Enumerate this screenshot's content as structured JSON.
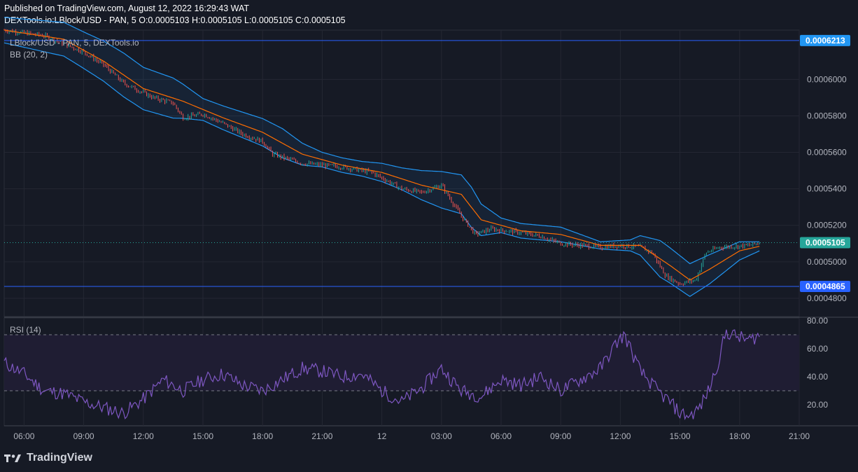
{
  "header": {
    "published": "Published on TradingView.com, August 12, 2022 16:29:43 WAT",
    "symbol": "DEXTools.io:LBlock/USD - PAN, 5",
    "ohlc": "O:0.0005103 H:0.0005105 L:0.0005105 C:0.0005105"
  },
  "legend": {
    "series": "LBlock/USD - PAN, 5, DEXTools.io",
    "indicator": "BB (20, 2)",
    "rsi": "RSI (14)"
  },
  "footer": {
    "brand": "TradingView",
    "logo_icon": "tradingview-logo-icon"
  },
  "colors": {
    "background": "#161a25",
    "grid": "#242733",
    "bb_band": "#2196f3",
    "bb_basis": "#ff6d00",
    "candle_up": "#26a69a",
    "candle_down": "#ef5350",
    "rsi_line": "#7e57c2",
    "rsi_band_fill": "#1f1d33",
    "hline": "#2962ff",
    "last_price": "#26a69a",
    "axis_text": "#b2b5be"
  },
  "chart_data": [
    {
      "type": "candlestick",
      "series_name": "LBlock/USD - PAN, 5, DEXTools.io",
      "ylim": [
        0.00047,
        0.000627
      ],
      "y_ticks": [
        "0.0004800",
        "0.0005000",
        "0.0005200",
        "0.0005400",
        "0.0005600",
        "0.0005800",
        "0.0006000"
      ],
      "x_ticks": [
        "06:00",
        "09:00",
        "12:00",
        "15:00",
        "18:00",
        "21:00",
        "12",
        "03:00",
        "06:00",
        "09:00",
        "12:00",
        "15:00",
        "18:00",
        "21:00"
      ],
      "xlim_hours": [
        5.0,
        45.0
      ],
      "horizontal_lines": [
        "0.0006213",
        "0.0004865"
      ],
      "last_price": "0.0005105",
      "close_path": [
        [
          5.0,
          0.000627
        ],
        [
          7.0,
          0.000624
        ],
        [
          9.0,
          0.000615
        ],
        [
          10.0,
          0.000608
        ],
        [
          11.0,
          0.000598
        ],
        [
          12.5,
          0.00059
        ],
        [
          13.5,
          0.000587
        ],
        [
          14.0,
          0.000579
        ],
        [
          15.0,
          0.000581
        ],
        [
          16.0,
          0.000576
        ],
        [
          17.0,
          0.00057
        ],
        [
          18.0,
          0.000566
        ],
        [
          18.5,
          0.000559
        ],
        [
          20.0,
          0.000554
        ],
        [
          21.0,
          0.000553
        ],
        [
          22.0,
          0.000552
        ],
        [
          23.5,
          0.000549
        ],
        [
          24.0,
          0.000546
        ],
        [
          25.0,
          0.00054
        ],
        [
          26.0,
          0.000538
        ],
        [
          27.0,
          0.000542
        ],
        [
          28.0,
          0.000525
        ],
        [
          28.7,
          0.000515
        ],
        [
          29.5,
          0.000518
        ],
        [
          31.0,
          0.000516
        ],
        [
          32.0,
          0.000514
        ],
        [
          33.0,
          0.00051
        ],
        [
          34.0,
          0.000509
        ],
        [
          35.0,
          0.000508
        ],
        [
          36.0,
          0.000509
        ],
        [
          37.0,
          0.000508
        ],
        [
          37.6,
          0.000505
        ],
        [
          38.3,
          0.000492
        ],
        [
          39.0,
          0.000488
        ],
        [
          39.8,
          0.00049
        ],
        [
          40.3,
          0.000505
        ],
        [
          41.0,
          0.000508
        ],
        [
          42.5,
          0.000509
        ],
        [
          43.0,
          0.0005105
        ]
      ],
      "bb_basis_path": [
        [
          5.0,
          0.000627
        ],
        [
          8.0,
          0.000622
        ],
        [
          10.0,
          0.00061
        ],
        [
          12.0,
          0.000595
        ],
        [
          14.0,
          0.000588
        ],
        [
          16.0,
          0.000579
        ],
        [
          18.0,
          0.000571
        ],
        [
          20.0,
          0.000559
        ],
        [
          22.0,
          0.000553
        ],
        [
          24.0,
          0.000549
        ],
        [
          26.0,
          0.000542
        ],
        [
          28.0,
          0.000537
        ],
        [
          29.0,
          0.000523
        ],
        [
          31.0,
          0.000517
        ],
        [
          33.0,
          0.000515
        ],
        [
          35.0,
          0.000509
        ],
        [
          37.0,
          0.000509
        ],
        [
          38.5,
          0.000498
        ],
        [
          39.5,
          0.00049
        ],
        [
          40.5,
          0.000496
        ],
        [
          42.0,
          0.000506
        ],
        [
          43.0,
          0.0005085
        ]
      ],
      "bb_width_path": [
        [
          5.0,
          7e-06
        ],
        [
          9.0,
          1e-05
        ],
        [
          11.0,
          1.2e-05
        ],
        [
          13.5,
          1.1e-05
        ],
        [
          15.0,
          6e-06
        ],
        [
          17.0,
          7e-06
        ],
        [
          19.0,
          8e-06
        ],
        [
          21.0,
          4e-06
        ],
        [
          23.0,
          4e-06
        ],
        [
          25.0,
          6e-06
        ],
        [
          27.0,
          1e-05
        ],
        [
          28.5,
          1.1e-05
        ],
        [
          30.0,
          4e-06
        ],
        [
          33.0,
          4e-06
        ],
        [
          35.0,
          2e-06
        ],
        [
          36.5,
          3e-06
        ],
        [
          38.0,
          1e-05
        ],
        [
          39.5,
          9e-06
        ],
        [
          40.5,
          8e-06
        ],
        [
          42.0,
          5e-06
        ],
        [
          43.0,
          2.5e-06
        ]
      ]
    },
    {
      "type": "line",
      "series_name": "RSI (14)",
      "ylim": [
        5,
        82
      ],
      "y_ticks": [
        "20.00",
        "40.00",
        "60.00",
        "80.00"
      ],
      "bands": [
        30,
        70
      ],
      "rsi_path": [
        [
          5.0,
          50
        ],
        [
          6.0,
          42
        ],
        [
          7.0,
          30
        ],
        [
          8.0,
          28
        ],
        [
          9.0,
          22
        ],
        [
          10.0,
          18
        ],
        [
          11.0,
          14
        ],
        [
          12.0,
          24
        ],
        [
          13.0,
          38
        ],
        [
          14.0,
          30
        ],
        [
          15.0,
          38
        ],
        [
          16.0,
          42
        ],
        [
          17.0,
          34
        ],
        [
          18.0,
          30
        ],
        [
          19.0,
          38
        ],
        [
          20.0,
          46
        ],
        [
          21.0,
          44
        ],
        [
          22.0,
          40
        ],
        [
          23.0,
          42
        ],
        [
          24.0,
          30
        ],
        [
          25.0,
          22
        ],
        [
          26.0,
          32
        ],
        [
          27.0,
          46
        ],
        [
          28.0,
          30
        ],
        [
          29.0,
          26
        ],
        [
          30.0,
          38
        ],
        [
          31.0,
          34
        ],
        [
          32.0,
          40
        ],
        [
          33.0,
          30
        ],
        [
          34.0,
          38
        ],
        [
          35.0,
          46
        ],
        [
          35.8,
          64
        ],
        [
          36.2,
          70
        ],
        [
          37.0,
          44
        ],
        [
          38.0,
          28
        ],
        [
          38.5,
          22
        ],
        [
          39.0,
          14
        ],
        [
          39.5,
          12
        ],
        [
          40.0,
          18
        ],
        [
          40.5,
          32
        ],
        [
          41.0,
          54
        ],
        [
          41.3,
          72
        ],
        [
          42.0,
          68
        ],
        [
          42.5,
          66
        ],
        [
          43.0,
          70
        ]
      ]
    }
  ]
}
